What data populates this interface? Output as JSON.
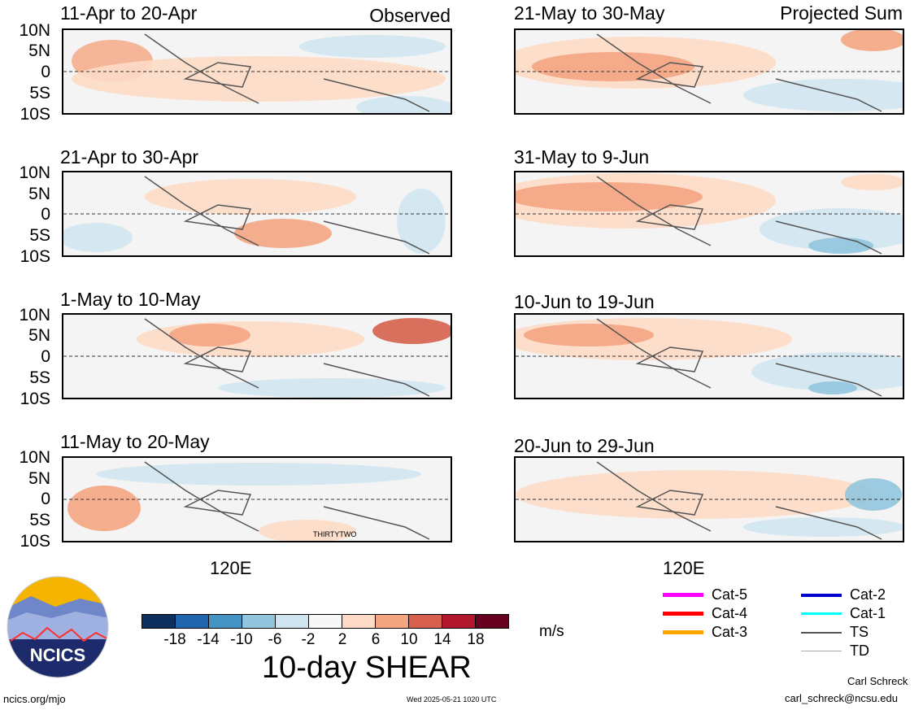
{
  "observed_label": "Observed",
  "projected_label": "Projected Sum",
  "panels": [
    {
      "title": "11-Apr to 20-Apr"
    },
    {
      "title": "21-Apr to 30-Apr"
    },
    {
      "title": "1-May to 10-May"
    },
    {
      "title": "11-May to 20-May"
    },
    {
      "title": "21-May to 30-May"
    },
    {
      "title": "31-May to 9-Jun"
    },
    {
      "title": "10-Jun to 19-Jun"
    },
    {
      "title": "20-Jun to 29-Jun"
    }
  ],
  "lat_labels": [
    "10N",
    "5N",
    "0",
    "5S",
    "10S"
  ],
  "lon_label": "120E",
  "storm_label": "THIRTYTWO",
  "colorbar": {
    "colors": [
      "#0d2f5e",
      "#2166ac",
      "#4393c3",
      "#92c5de",
      "#d1e5f0",
      "#f7f7f7",
      "#fddbc7",
      "#f4a582",
      "#d6604d",
      "#b2182b",
      "#67001f"
    ],
    "ticks": [
      "-18",
      "-14",
      "-10",
      "-6",
      "-2",
      "2",
      "6",
      "10",
      "14",
      "18"
    ],
    "units": "m/s",
    "title": "10-day SHEAR"
  },
  "legend": {
    "col1": [
      {
        "label": "Cat-5",
        "color": "#ff00ff"
      },
      {
        "label": "Cat-4",
        "color": "#ff0000"
      },
      {
        "label": "Cat-3",
        "color": "#ffa500"
      }
    ],
    "col2": [
      {
        "label": "Cat-2",
        "color": "#0000cc"
      },
      {
        "label": "Cat-1",
        "color": "#00ffff"
      },
      {
        "label": "TS",
        "color": "#555555"
      },
      {
        "label": "TD",
        "color": "#aaaaaa"
      }
    ]
  },
  "logo_text": "NCICS",
  "footer": {
    "left": "ncics.org/mjo",
    "center": "Wed 2025-05-21 1020 UTC",
    "author": "Carl Schreck",
    "email": "carl_schreck@ncsu.edu"
  }
}
